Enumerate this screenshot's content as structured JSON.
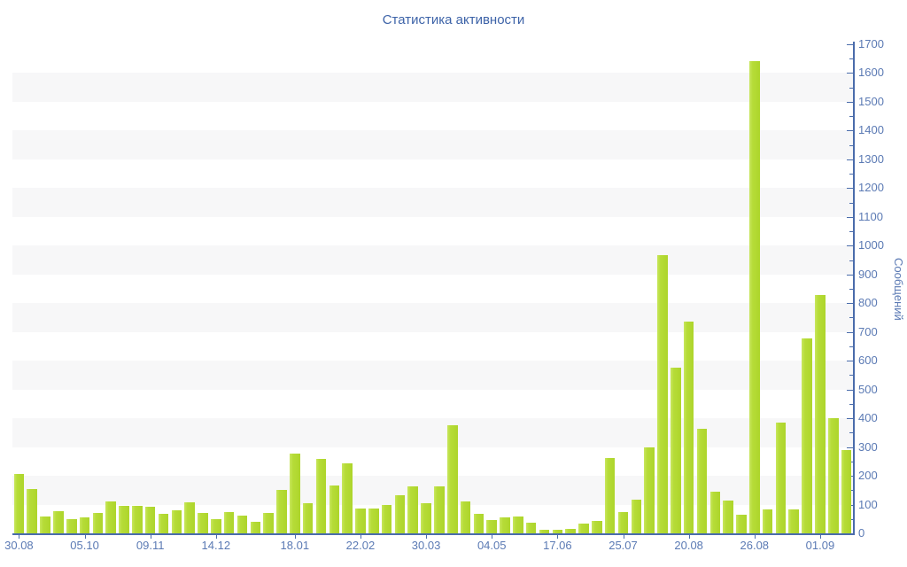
{
  "title": "Статистика активности",
  "chart_data": {
    "type": "bar",
    "title": "Статистика активности",
    "xlabel": "",
    "ylabel": "Сообщений",
    "ylim": [
      0,
      1700
    ],
    "y_major_tick_step": 100,
    "y_minor_tick_step": 50,
    "y_major_ticks": [
      0,
      100,
      200,
      300,
      400,
      500,
      600,
      700,
      800,
      900,
      1000,
      1100,
      1200,
      1300,
      1400,
      1500,
      1600,
      1700
    ],
    "grid": "alternating horizontal bands of 100 units",
    "grid_band_starts": [
      100,
      300,
      500,
      700,
      900,
      1100,
      1300,
      1500
    ],
    "grid_band_height": 100,
    "legend": "none",
    "values": [
      205,
      155,
      60,
      76,
      50,
      55,
      70,
      112,
      95,
      97,
      92,
      68,
      81,
      107,
      71,
      49,
      73,
      62,
      41,
      70,
      150,
      278,
      104,
      258,
      166,
      242,
      86,
      85,
      98,
      133,
      163,
      104,
      163,
      376,
      111,
      68,
      47,
      55,
      58,
      37,
      13,
      13,
      15,
      34,
      42,
      263,
      73,
      116,
      299,
      967,
      576,
      736,
      363,
      145,
      114,
      65,
      1640,
      83,
      386,
      83,
      679,
      828,
      400,
      289
    ],
    "x_tick_labels": [
      {
        "label": "30.08",
        "bar": 1
      },
      {
        "label": "05.10",
        "bar": 6
      },
      {
        "label": "09.11",
        "bar": 11
      },
      {
        "label": "14.12",
        "bar": 16
      },
      {
        "label": "18.01",
        "bar": 22
      },
      {
        "label": "22.02",
        "bar": 27
      },
      {
        "label": "30.03",
        "bar": 32
      },
      {
        "label": "04.05",
        "bar": 37
      },
      {
        "label": "17.06",
        "bar": 42
      },
      {
        "label": "25.07",
        "bar": 47
      },
      {
        "label": "20.08",
        "bar": 52
      },
      {
        "label": "26.08",
        "bar": 57
      },
      {
        "label": "01.09",
        "bar": 62
      }
    ]
  },
  "colors": {
    "background": "#ffffff",
    "bar_fill": "#b6dc38",
    "bar_edge_light": "#c9e75f",
    "bar_edge_dark": "#add52b",
    "axis_line": "#4a6cab",
    "tick_text": "#5b7ab4",
    "title_text": "#3d63a8",
    "grid_band": "#f7f7f8"
  }
}
